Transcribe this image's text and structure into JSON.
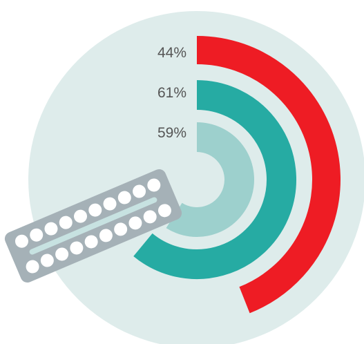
{
  "chart_data": {
    "type": "radial-bar",
    "series": [
      {
        "label": "44%",
        "value": 44,
        "color": "#ee1c24"
      },
      {
        "label": "61%",
        "value": 61,
        "color": "#26aba3"
      },
      {
        "label": "59%",
        "value": 59,
        "color": "#9dd0cd"
      }
    ]
  },
  "colors": {
    "background_circle": "#deeceb",
    "pill_pack": "#a5b1b7",
    "pill_pack_channel": "#c7e2e1",
    "pill": "#ffffff",
    "label_text": "#555555"
  },
  "icons": {
    "pill_pack": "birth-control-pill-pack-icon"
  }
}
